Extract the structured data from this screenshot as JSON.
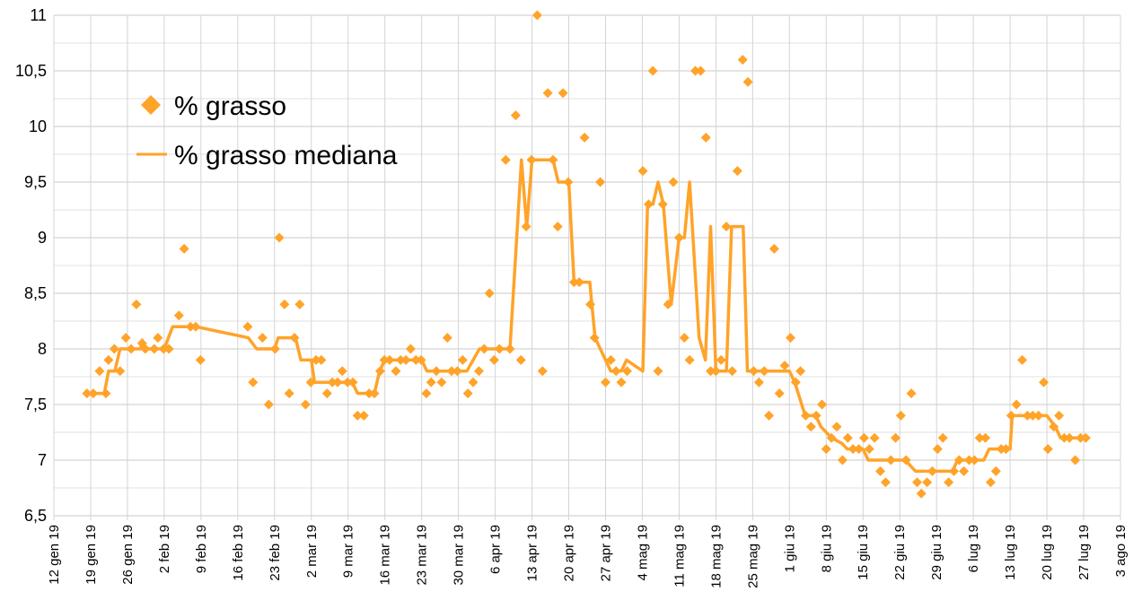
{
  "chart_data": {
    "type": "scatter",
    "title": "",
    "xlabel": "",
    "ylabel": "",
    "x_units": "days since 12 gen 19",
    "ylim": [
      6.5,
      11
    ],
    "xlim": [
      0,
      203
    ],
    "grid": true,
    "legend_placement": "top-left",
    "colors": {
      "series": "#ffa329",
      "grid": "#d4d4d4"
    },
    "yticks": [
      "6,5",
      "7",
      "7,5",
      "8",
      "8,5",
      "9",
      "9,5",
      "10",
      "10,5",
      "11"
    ],
    "ytick_values": [
      6.5,
      7,
      7.5,
      8,
      8.5,
      9,
      9.5,
      10,
      10.5,
      11
    ],
    "xticks": [
      "12 gen 19",
      "19 gen 19",
      "26 gen 19",
      "2 feb 19",
      "9 feb 19",
      "16 feb 19",
      "23 feb 19",
      "2 mar 19",
      "9 mar 19",
      "16 mar 19",
      "23 mar 19",
      "30 mar 19",
      "6 apr 19",
      "13 apr 19",
      "20 apr 19",
      "27 apr 19",
      "4 mag 19",
      "11 mag 19",
      "18 mag 19",
      "25 mag 19",
      "1 giu 19",
      "8 giu 19",
      "15 giu 19",
      "22 giu 19",
      "29 giu 19",
      "6 lug 19",
      "13 lug 19",
      "20 lug 19",
      "27 lug 19",
      "3 ago 19"
    ],
    "series": [
      {
        "name": "% grasso",
        "kind": "scatter",
        "points": [
          [
            6.3,
            7.6
          ],
          [
            7.5,
            7.6
          ],
          [
            8.7,
            7.8
          ],
          [
            9.9,
            7.6
          ],
          [
            10.4,
            7.9
          ],
          [
            11.5,
            8.0
          ],
          [
            12.6,
            7.8
          ],
          [
            13.7,
            8.1
          ],
          [
            14.7,
            8.0
          ],
          [
            15.7,
            8.4
          ],
          [
            16.8,
            8.05
          ],
          [
            17.4,
            8.0
          ],
          [
            19.1,
            8.0
          ],
          [
            19.8,
            8.1
          ],
          [
            20.9,
            8.0
          ],
          [
            21.9,
            8.0
          ],
          [
            23.8,
            8.3
          ],
          [
            24.8,
            8.9
          ],
          [
            26,
            8.2
          ],
          [
            27,
            8.2
          ],
          [
            27.9,
            7.9
          ],
          [
            36.9,
            8.2
          ],
          [
            37.9,
            7.7
          ],
          [
            39.7,
            8.1
          ],
          [
            40.9,
            7.5
          ],
          [
            42.1,
            8.0
          ],
          [
            42.9,
            9.0
          ],
          [
            43.9,
            8.4
          ],
          [
            44.8,
            7.6
          ],
          [
            45.8,
            8.1
          ],
          [
            46.8,
            8.4
          ],
          [
            47.9,
            7.5
          ],
          [
            48.9,
            7.7
          ],
          [
            49.9,
            7.9
          ],
          [
            50.9,
            7.9
          ],
          [
            52,
            7.6
          ],
          [
            53,
            7.7
          ],
          [
            54,
            7.7
          ],
          [
            54.9,
            7.8
          ],
          [
            55.9,
            7.7
          ],
          [
            56.9,
            7.7
          ],
          [
            57.8,
            7.4
          ],
          [
            59,
            7.4
          ],
          [
            60,
            7.6
          ],
          [
            61,
            7.6
          ],
          [
            62.1,
            7.8
          ],
          [
            62.9,
            7.9
          ],
          [
            63.9,
            7.9
          ],
          [
            65.1,
            7.8
          ],
          [
            66,
            7.9
          ],
          [
            67,
            7.9
          ],
          [
            67.9,
            8.0
          ],
          [
            68.9,
            7.9
          ],
          [
            69.9,
            7.9
          ],
          [
            70.9,
            7.6
          ],
          [
            71.8,
            7.7
          ],
          [
            72.8,
            7.8
          ],
          [
            73.8,
            7.7
          ],
          [
            74.9,
            8.1
          ],
          [
            75.7,
            7.8
          ],
          [
            76.8,
            7.8
          ],
          [
            77.8,
            7.9
          ],
          [
            78.8,
            7.6
          ],
          [
            79.8,
            7.7
          ],
          [
            80.9,
            7.8
          ],
          [
            81.9,
            8.0
          ],
          [
            82.9,
            8.5
          ],
          [
            83.8,
            7.9
          ],
          [
            84.8,
            8.0
          ],
          [
            86,
            9.7
          ],
          [
            86.8,
            8.0
          ],
          [
            87.9,
            10.1
          ],
          [
            88.9,
            7.9
          ],
          [
            89.9,
            9.1
          ],
          [
            90.9,
            9.7
          ],
          [
            92,
            11.0
          ],
          [
            93,
            7.8
          ],
          [
            94,
            10.3
          ],
          [
            95,
            9.7
          ],
          [
            95.9,
            9.1
          ],
          [
            96.9,
            10.3
          ],
          [
            97.9,
            9.5
          ],
          [
            99,
            8.6
          ],
          [
            100,
            8.6
          ],
          [
            101,
            9.9
          ],
          [
            102.1,
            8.4
          ],
          [
            102.9,
            8.1
          ],
          [
            104,
            9.5
          ],
          [
            105,
            7.7
          ],
          [
            106,
            7.9
          ],
          [
            107,
            7.8
          ],
          [
            108,
            7.7
          ],
          [
            109.1,
            7.8
          ],
          [
            112.1,
            9.6
          ],
          [
            113.2,
            9.3
          ],
          [
            114,
            10.5
          ],
          [
            115,
            7.8
          ],
          [
            115.9,
            9.3
          ],
          [
            116.9,
            8.4
          ],
          [
            117.9,
            9.5
          ],
          [
            119,
            9.0
          ],
          [
            120,
            8.1
          ],
          [
            121,
            7.9
          ],
          [
            122.1,
            10.5
          ],
          [
            123.1,
            10.5
          ],
          [
            124.1,
            9.9
          ],
          [
            125,
            7.8
          ],
          [
            126,
            7.8
          ],
          [
            127,
            7.9
          ],
          [
            128,
            9.1
          ],
          [
            129.1,
            7.8
          ],
          [
            130.1,
            9.6
          ],
          [
            131.1,
            10.6
          ],
          [
            132.1,
            10.4
          ],
          [
            133.2,
            7.8
          ],
          [
            134.2,
            7.7
          ],
          [
            135.2,
            7.8
          ],
          [
            136.1,
            7.4
          ],
          [
            137.1,
            8.9
          ],
          [
            138.1,
            7.6
          ],
          [
            139.1,
            7.85
          ],
          [
            140.2,
            8.1
          ],
          [
            141.2,
            7.7
          ],
          [
            142.1,
            7.8
          ],
          [
            143.1,
            7.4
          ],
          [
            144.1,
            7.3
          ],
          [
            145.1,
            7.4
          ],
          [
            146.2,
            7.5
          ],
          [
            147,
            7.1
          ],
          [
            148,
            7.2
          ],
          [
            149,
            7.3
          ],
          [
            150.1,
            7.0
          ],
          [
            151.1,
            7.2
          ],
          [
            152.1,
            7.1
          ],
          [
            153.2,
            7.1
          ],
          [
            154.2,
            7.2
          ],
          [
            155.2,
            7.1
          ],
          [
            156.2,
            7.2
          ],
          [
            157.3,
            6.9
          ],
          [
            158.3,
            6.8
          ],
          [
            159.3,
            7.0
          ],
          [
            160.2,
            7.2
          ],
          [
            161.2,
            7.4
          ],
          [
            162.2,
            7.0
          ],
          [
            163.2,
            7.6
          ],
          [
            164.3,
            6.8
          ],
          [
            165.1,
            6.7
          ],
          [
            166.2,
            6.8
          ],
          [
            167.2,
            6.9
          ],
          [
            168.2,
            7.1
          ],
          [
            169.2,
            7.2
          ],
          [
            170.3,
            6.8
          ],
          [
            171.3,
            6.9
          ],
          [
            172.3,
            7.0
          ],
          [
            173.2,
            6.9
          ],
          [
            174.2,
            7.0
          ],
          [
            175.2,
            7.0
          ],
          [
            176.2,
            7.2
          ],
          [
            177.3,
            7.2
          ],
          [
            178.3,
            6.8
          ],
          [
            179.3,
            6.9
          ],
          [
            180.3,
            7.1
          ],
          [
            181.2,
            7.1
          ],
          [
            182.2,
            7.4
          ],
          [
            183.2,
            7.5
          ],
          [
            184.3,
            7.9
          ],
          [
            185.3,
            7.4
          ],
          [
            186.3,
            7.4
          ],
          [
            187.4,
            7.4
          ],
          [
            188.4,
            7.7
          ],
          [
            189.2,
            7.1
          ],
          [
            190.3,
            7.3
          ],
          [
            191.3,
            7.4
          ],
          [
            192.3,
            7.2
          ],
          [
            193.3,
            7.2
          ],
          [
            194.4,
            7.0
          ],
          [
            195.4,
            7.2
          ],
          [
            196.4,
            7.2
          ]
        ]
      },
      {
        "name": "% grasso mediana",
        "kind": "line",
        "points": [
          [
            6.3,
            7.6
          ],
          [
            9.6,
            7.6
          ],
          [
            10.4,
            7.8
          ],
          [
            11.6,
            7.8
          ],
          [
            12.6,
            8.0
          ],
          [
            16.5,
            8.0
          ],
          [
            16.8,
            8.08
          ],
          [
            17.4,
            8.0
          ],
          [
            21,
            8.0
          ],
          [
            22.6,
            8.2
          ],
          [
            27,
            8.2
          ],
          [
            37,
            8.1
          ],
          [
            38.6,
            8.0
          ],
          [
            42,
            8.0
          ],
          [
            42.7,
            8.1
          ],
          [
            46,
            8.1
          ],
          [
            47,
            7.9
          ],
          [
            49,
            7.9
          ],
          [
            49.6,
            7.7
          ],
          [
            56.8,
            7.7
          ],
          [
            57.8,
            7.6
          ],
          [
            61,
            7.6
          ],
          [
            62,
            7.8
          ],
          [
            63,
            7.9
          ],
          [
            70,
            7.9
          ],
          [
            71,
            7.8
          ],
          [
            78.6,
            7.8
          ],
          [
            81,
            8.0
          ],
          [
            86.8,
            8.0
          ],
          [
            89,
            9.7
          ],
          [
            90,
            9.1
          ],
          [
            91,
            9.7
          ],
          [
            95,
            9.7
          ],
          [
            96,
            9.5
          ],
          [
            98,
            9.5
          ],
          [
            99,
            8.6
          ],
          [
            102,
            8.6
          ],
          [
            103,
            8.1
          ],
          [
            106,
            7.8
          ],
          [
            108,
            7.8
          ],
          [
            109,
            7.9
          ],
          [
            112.1,
            7.8
          ],
          [
            113,
            9.3
          ],
          [
            114,
            9.3
          ],
          [
            115,
            9.5
          ],
          [
            116,
            9.3
          ],
          [
            117.5,
            8.4
          ],
          [
            119,
            9.0
          ],
          [
            120,
            9.0
          ],
          [
            121,
            9.5
          ],
          [
            122.8,
            8.1
          ],
          [
            124,
            7.9
          ],
          [
            125,
            9.1
          ],
          [
            126,
            7.8
          ],
          [
            128,
            7.8
          ],
          [
            129,
            9.1
          ],
          [
            131.2,
            9.1
          ],
          [
            132,
            7.8
          ],
          [
            140,
            7.8
          ],
          [
            141,
            7.7
          ],
          [
            143,
            7.4
          ],
          [
            145,
            7.4
          ],
          [
            146,
            7.3
          ],
          [
            148,
            7.2
          ],
          [
            150,
            7.15
          ],
          [
            151,
            7.1
          ],
          [
            154,
            7.1
          ],
          [
            155,
            7.0
          ],
          [
            162,
            7.0
          ],
          [
            164,
            6.9
          ],
          [
            171,
            6.9
          ],
          [
            172,
            7.0
          ],
          [
            177,
            7.0
          ],
          [
            178,
            7.1
          ],
          [
            182,
            7.1
          ],
          [
            182.4,
            7.4
          ],
          [
            189,
            7.4
          ],
          [
            190.6,
            7.3
          ],
          [
            191.6,
            7.2
          ],
          [
            196.4,
            7.2
          ]
        ]
      }
    ]
  },
  "legend": {
    "items": [
      {
        "label": "% grasso",
        "icon": "diamond-marker"
      },
      {
        "label": "% grasso mediana",
        "icon": "line-marker"
      }
    ]
  }
}
